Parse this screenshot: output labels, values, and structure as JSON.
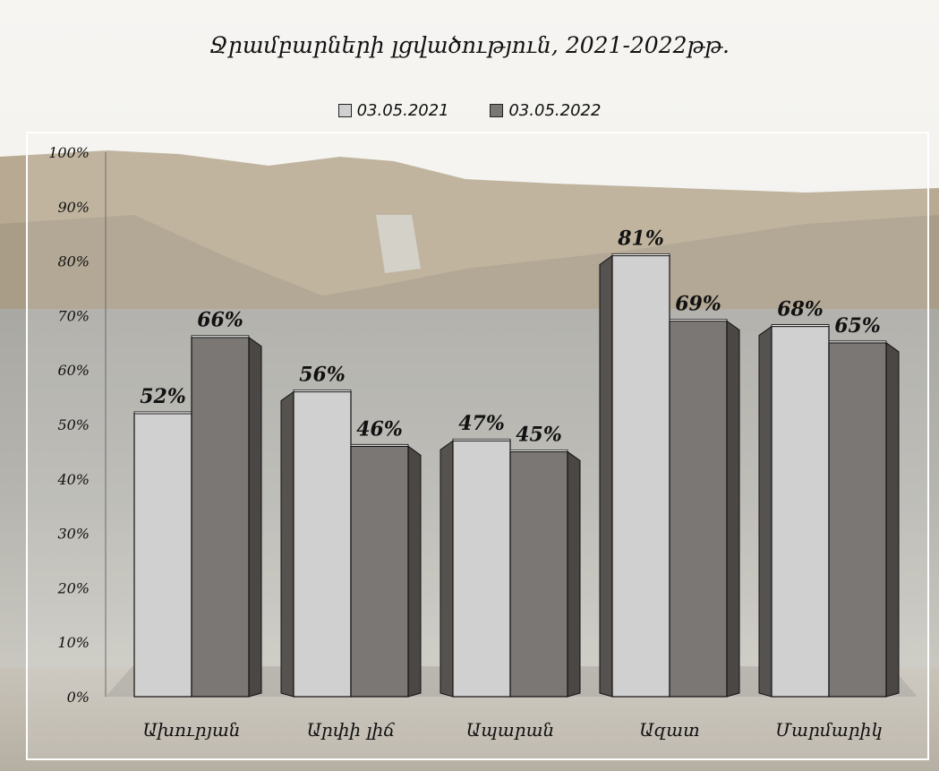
{
  "chart_data": {
    "type": "bar",
    "title": "Ջրամբարների լցվածություն,  2021-2022թթ.",
    "categories": [
      "Ախուրյան",
      "Արփի լիճ",
      "Ապարան",
      "Ազատ",
      "Մարմարիկ"
    ],
    "series": [
      {
        "name": "03.05.2021",
        "values": [
          52,
          56,
          47,
          81,
          68
        ],
        "labels": [
          "52%",
          "56%",
          "47%",
          "81%",
          "68%"
        ]
      },
      {
        "name": "03.05.2022",
        "values": [
          66,
          46,
          45,
          69,
          65
        ],
        "labels": [
          "66%",
          "46%",
          "45%",
          "69%",
          "65%"
        ]
      }
    ],
    "ylim": [
      0,
      100
    ],
    "yticks": [
      "0%",
      "10%",
      "20%",
      "30%",
      "40%",
      "50%",
      "60%",
      "70%",
      "80%",
      "90%",
      "100%"
    ],
    "legend": "top",
    "grid": false
  },
  "colors": {
    "series_2021": "#d0d0d0",
    "series_2022": "#7a7774",
    "side_dark": "#4a4745",
    "outline": "#111111"
  }
}
